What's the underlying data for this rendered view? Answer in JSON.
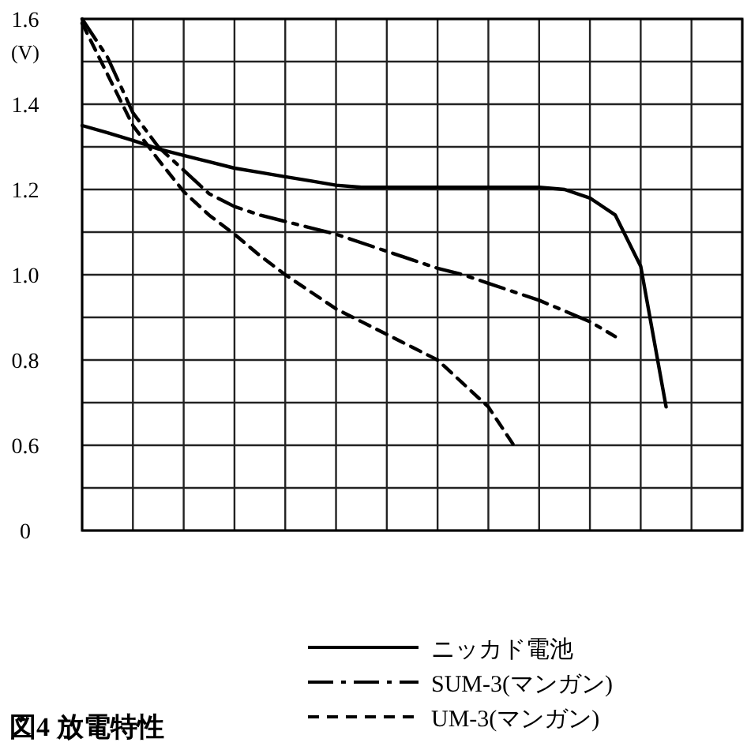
{
  "chart_data": {
    "type": "line",
    "title": "図4 放電特性",
    "ylabel": "(V)",
    "categories": [
      null,
      null,
      null,
      null,
      null,
      null,
      null,
      null,
      null,
      null,
      null,
      null,
      null,
      null,
      null,
      null,
      null,
      null,
      null,
      null,
      null,
      null,
      null,
      null,
      null,
      null,
      null
    ],
    "ylim": [
      0.4,
      1.6
    ],
    "yticks": [
      {
        "value": 0.4,
        "label": "0"
      },
      {
        "value": 0.5,
        "label": null
      },
      {
        "value": 0.6,
        "label": "0.6"
      },
      {
        "value": 0.7,
        "label": null
      },
      {
        "value": 0.8,
        "label": "0.8"
      },
      {
        "value": 0.9,
        "label": null
      },
      {
        "value": 1.0,
        "label": "1.0"
      },
      {
        "value": 1.1,
        "label": null
      },
      {
        "value": 1.2,
        "label": "1.2"
      },
      {
        "value": 1.3,
        "label": null
      },
      {
        "value": 1.4,
        "label": "1.4"
      },
      {
        "value": 1.5,
        "label": null
      },
      {
        "value": 1.6,
        "label": "1.6"
      }
    ],
    "tick_labels": "y",
    "grid": true,
    "legend": "bottom",
    "series": [
      {
        "name": "ニッカド電池",
        "color": "#000000",
        "line_style": "solid",
        "values": [
          1.35,
          1.333,
          1.315,
          1.295,
          1.28,
          1.265,
          1.25,
          1.24,
          1.23,
          1.22,
          1.21,
          1.205,
          1.205,
          1.205,
          1.205,
          1.205,
          1.205,
          1.205,
          1.205,
          1.2,
          1.18,
          1.14,
          1.02,
          0.69,
          null,
          null,
          null
        ]
      },
      {
        "name": "SUM-3(マンガン)",
        "color": "#000000",
        "line_style": "dashdot",
        "values": [
          1.6,
          1.51,
          1.38,
          1.3,
          1.245,
          1.19,
          1.16,
          1.14,
          1.125,
          1.11,
          1.095,
          1.075,
          1.055,
          1.035,
          1.015,
          1.0,
          0.98,
          0.96,
          0.94,
          0.915,
          0.89,
          0.855,
          null,
          null,
          null,
          null,
          null
        ]
      },
      {
        "name": "UM-3(マンガン)",
        "color": "#000000",
        "line_style": "dashed",
        "values": [
          1.59,
          1.47,
          1.35,
          1.27,
          1.195,
          1.14,
          1.095,
          1.045,
          1.0,
          0.96,
          0.92,
          0.89,
          0.86,
          0.83,
          0.8,
          0.745,
          0.69,
          0.6,
          null,
          null,
          null,
          null,
          null,
          null,
          null,
          null,
          null
        ]
      }
    ]
  }
}
